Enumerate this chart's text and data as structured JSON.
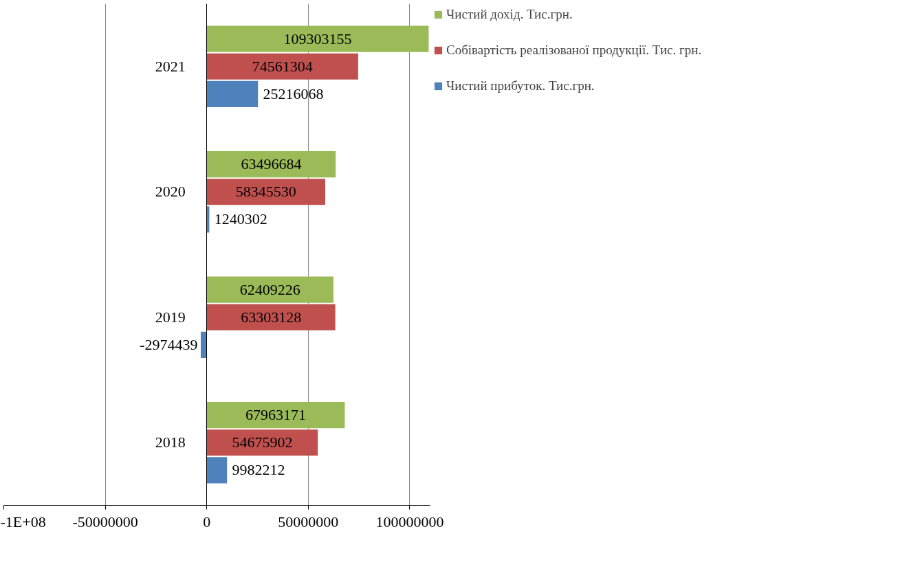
{
  "chart_data": {
    "type": "bar",
    "orientation": "horizontal",
    "categories": [
      "2021",
      "2020",
      "2019",
      "2018"
    ],
    "series": [
      {
        "name": "Чистий дохід. Тис.грн.",
        "color": "#9bbb59",
        "values": [
          109303155,
          63496684,
          62409226,
          67963171
        ]
      },
      {
        "name": "Собівартість реалізованої продукції. Тис. грн.",
        "color": "#c0504d",
        "values": [
          74561304,
          58345530,
          63303128,
          54675902
        ]
      },
      {
        "name": "Чистий прибуток. Тис.грн.",
        "color": "#4f81bd",
        "values": [
          25216068,
          1240302,
          -2974439,
          9982212
        ]
      }
    ],
    "xlim": [
      -100000000,
      110000000
    ],
    "xticks": [
      {
        "value": -100000000,
        "label": "-1E+08"
      },
      -50000000,
      0,
      50000000,
      100000000
    ],
    "grid": "x",
    "legend": "right",
    "data_labels": true
  }
}
